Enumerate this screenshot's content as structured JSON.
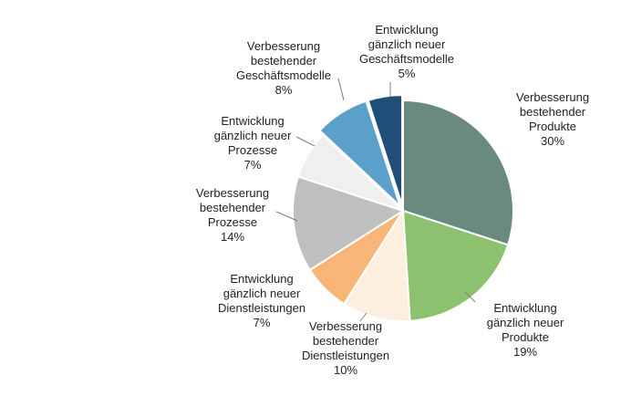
{
  "chart_data": {
    "type": "pie",
    "title": "",
    "slices": [
      {
        "label": [
          "Verbesserung",
          "bestehender",
          "Produkte"
        ],
        "value": 30,
        "value_label": "30%",
        "color": "#6b8a7e"
      },
      {
        "label": [
          "Entwicklung",
          "gänzlich neuer",
          "Produkte"
        ],
        "value": 19,
        "value_label": "19%",
        "color": "#8cc26f"
      },
      {
        "label": [
          "Verbesserung",
          "bestehender",
          "Dienstleistungen"
        ],
        "value": 10,
        "value_label": "10%",
        "color": "#fcefdf"
      },
      {
        "label": [
          "Entwicklung",
          "gänzlich neuer",
          "Dienstleistungen"
        ],
        "value": 7,
        "value_label": "7%",
        "color": "#f7b677"
      },
      {
        "label": [
          "Verbesserung",
          "bestehender",
          "Prozesse"
        ],
        "value": 14,
        "value_label": "14%",
        "color": "#bfbfbf"
      },
      {
        "label": [
          "Entwicklung",
          "gänzlich neuer",
          "Prozesse"
        ],
        "value": 7,
        "value_label": "7%",
        "color": "#efefef"
      },
      {
        "label": [
          "Verbesserung",
          "bestehender",
          "Geschäftsmodelle"
        ],
        "value": 8,
        "value_label": "8%",
        "color": "#5b9fcb"
      },
      {
        "label": [
          "Entwicklung",
          "gänzlich neuer",
          "Geschäftsmodelle"
        ],
        "value": 5,
        "value_label": "5%",
        "color": "#1f4e79"
      }
    ]
  }
}
